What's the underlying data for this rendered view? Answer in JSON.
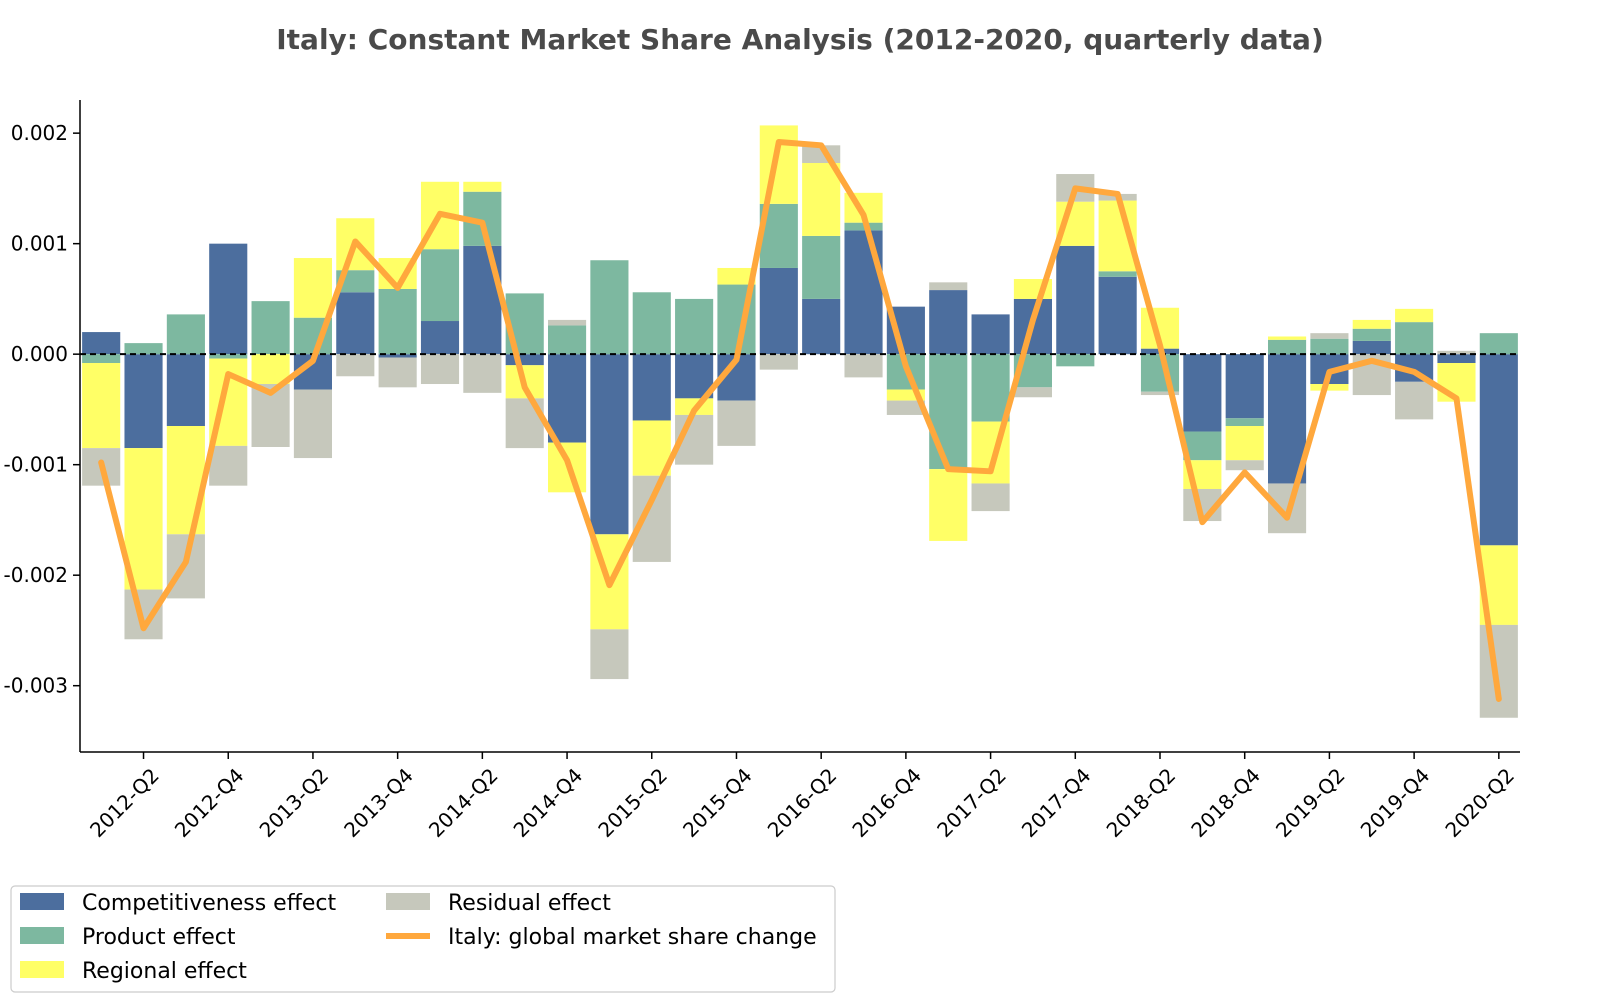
{
  "chart_data": {
    "type": "bar",
    "stacked": true,
    "title": "Italy: Constant Market Share Analysis (2012-2020, quarterly data)",
    "xlabel": "",
    "ylabel": "",
    "ylim": [
      -0.0036,
      0.0023
    ],
    "yticks": [
      {
        "value": 0.002,
        "label": "0.002"
      },
      {
        "value": 0.001,
        "label": "0.001"
      },
      {
        "value": 0.0,
        "label": "0.000"
      },
      {
        "value": -0.001,
        "label": "-0.001"
      },
      {
        "value": -0.002,
        "label": "-0.002"
      },
      {
        "value": -0.003,
        "label": "-0.003"
      }
    ],
    "categories": [
      "2012-Q1",
      "2012-Q2",
      "2012-Q3",
      "2012-Q4",
      "2013-Q1",
      "2013-Q2",
      "2013-Q3",
      "2013-Q4",
      "2014-Q1",
      "2014-Q2",
      "2014-Q3",
      "2014-Q4",
      "2015-Q1",
      "2015-Q2",
      "2015-Q3",
      "2015-Q4",
      "2016-Q1",
      "2016-Q2",
      "2016-Q3",
      "2016-Q4",
      "2017-Q1",
      "2017-Q2",
      "2017-Q3",
      "2017-Q4",
      "2018-Q1",
      "2018-Q2",
      "2018-Q3",
      "2018-Q4",
      "2019-Q1",
      "2019-Q2",
      "2019-Q3",
      "2019-Q4",
      "2020-Q1",
      "2020-Q2"
    ],
    "xtick_labels": [
      "2012-Q2",
      "2012-Q4",
      "2013-Q2",
      "2013-Q4",
      "2014-Q2",
      "2014-Q4",
      "2015-Q2",
      "2015-Q4",
      "2016-Q2",
      "2016-Q4",
      "2017-Q2",
      "2017-Q4",
      "2018-Q2",
      "2018-Q4",
      "2019-Q2",
      "2019-Q4",
      "2020-Q2"
    ],
    "series": [
      {
        "name": "Competitiveness effect",
        "color": "#4c6e9e",
        "values": [
          0.0002,
          -0.00085,
          -0.00065,
          0.001,
          0.0,
          -0.00032,
          0.00056,
          -3e-05,
          0.0003,
          0.00098,
          -0.0001,
          -0.0008,
          -0.00163,
          -0.0006,
          -0.0004,
          -0.00042,
          0.00078,
          0.0005,
          0.00112,
          0.00043,
          0.00058,
          0.00036,
          0.0005,
          0.00098,
          0.0007,
          5e-05,
          -0.0007,
          -0.00058,
          -0.00117,
          -0.00027,
          0.00012,
          -0.00025,
          -8e-05,
          -0.00173
        ]
      },
      {
        "name": "Product effect",
        "color": "#7db8a0",
        "values": [
          -8e-05,
          0.0001,
          0.00036,
          -4e-05,
          0.00048,
          0.00033,
          0.0002,
          0.00059,
          0.00065,
          0.00049,
          0.00055,
          0.00026,
          0.00085,
          0.00056,
          0.0005,
          0.00063,
          0.00058,
          0.00057,
          7e-05,
          -0.00032,
          -0.00104,
          -0.00061,
          -0.0003,
          -0.00011,
          5e-05,
          -0.00034,
          -0.00026,
          -7e-05,
          0.00013,
          0.00014,
          0.00011,
          0.00029,
          0.0,
          0.00019
        ]
      },
      {
        "name": "Regional effect",
        "color": "#ffff66",
        "values": [
          -0.00077,
          -0.00128,
          -0.00098,
          -0.00079,
          -0.00027,
          0.00054,
          0.00047,
          0.00028,
          0.00061,
          9e-05,
          -0.0003,
          -0.00045,
          -0.00086,
          -0.0005,
          -0.00015,
          0.00015,
          0.00071,
          0.00066,
          0.00027,
          -0.0001,
          -0.00065,
          -0.00056,
          0.00018,
          0.0004,
          0.00064,
          0.00037,
          -0.00026,
          -0.00031,
          3e-05,
          -6e-05,
          8e-05,
          0.00012,
          -0.00035,
          -0.00072
        ]
      },
      {
        "name": "Residual effect",
        "color": "#c6c8bc",
        "values": [
          -0.00034,
          -0.00045,
          -0.00058,
          -0.00036,
          -0.00057,
          -0.00062,
          -0.0002,
          -0.00027,
          -0.00027,
          -0.00035,
          -0.00045,
          5e-05,
          -0.00045,
          -0.00078,
          -0.00045,
          -0.00041,
          -0.00014,
          0.00016,
          -0.00021,
          -0.00013,
          7e-05,
          -0.00025,
          -9e-05,
          0.00025,
          6e-05,
          -3e-05,
          -0.00029,
          -9e-05,
          -0.00045,
          5e-05,
          -0.00037,
          -0.00034,
          3e-05,
          -0.00084
        ]
      }
    ],
    "line": {
      "name": "Italy: global market share change",
      "color": "#ffa83d",
      "values": [
        -0.00098,
        -0.00248,
        -0.00188,
        -0.00018,
        -0.00035,
        -6e-05,
        0.00102,
        0.0006,
        0.00127,
        0.00119,
        -0.0003,
        -0.00096,
        -0.00209,
        -0.00132,
        -0.00051,
        -5e-05,
        0.00192,
        0.00189,
        0.00126,
        -0.00011,
        -0.00104,
        -0.00106,
        0.00031,
        0.0015,
        0.00145,
        8e-05,
        -0.00152,
        -0.00107,
        -0.00148,
        -0.00016,
        -6e-05,
        -0.00016,
        -0.0004,
        -0.00312
      ]
    },
    "zero_line": {
      "style": "dashed",
      "color": "#000000"
    },
    "grid": false,
    "legend": {
      "position": "bottom-left",
      "columns": 2,
      "order": [
        "Competitiveness effect",
        "Product effect",
        "Regional effect",
        "Residual effect",
        "Italy: global market share change"
      ]
    }
  }
}
